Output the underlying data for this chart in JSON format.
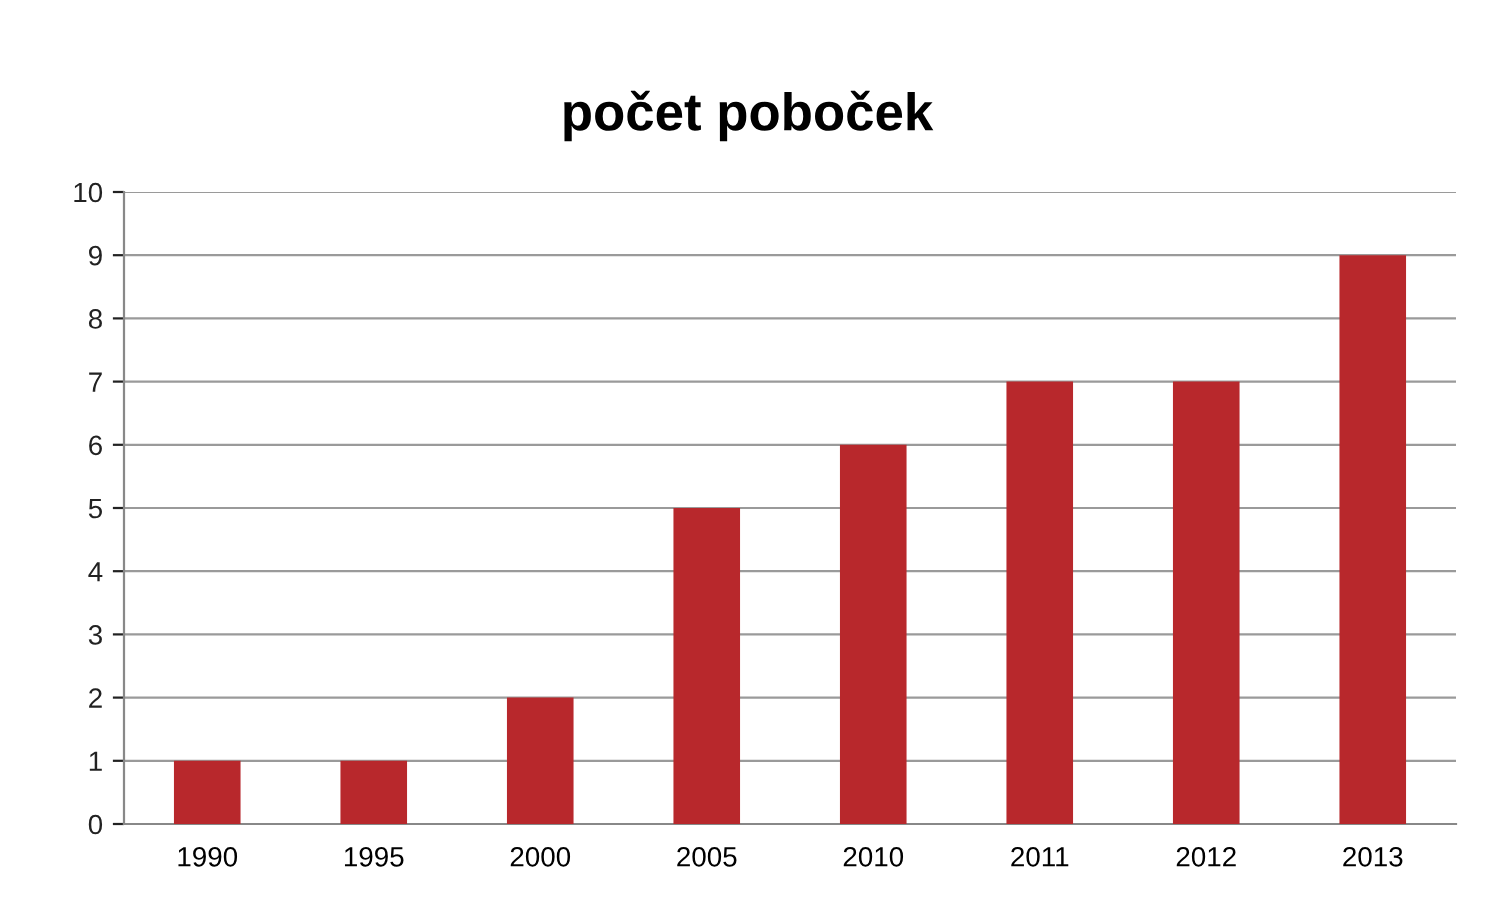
{
  "chart_data": {
    "type": "bar",
    "title": "počet poboček",
    "categories": [
      "1990",
      "1995",
      "2000",
      "2005",
      "2010",
      "2011",
      "2012",
      "2013"
    ],
    "values": [
      1,
      1,
      2,
      5,
      6,
      7,
      7,
      9
    ],
    "color": "#b8282c",
    "ylim": [
      0,
      10
    ],
    "yticks": [
      0,
      1,
      2,
      3,
      4,
      5,
      6,
      7,
      8,
      9,
      10
    ],
    "grid": "y",
    "legend": false
  }
}
